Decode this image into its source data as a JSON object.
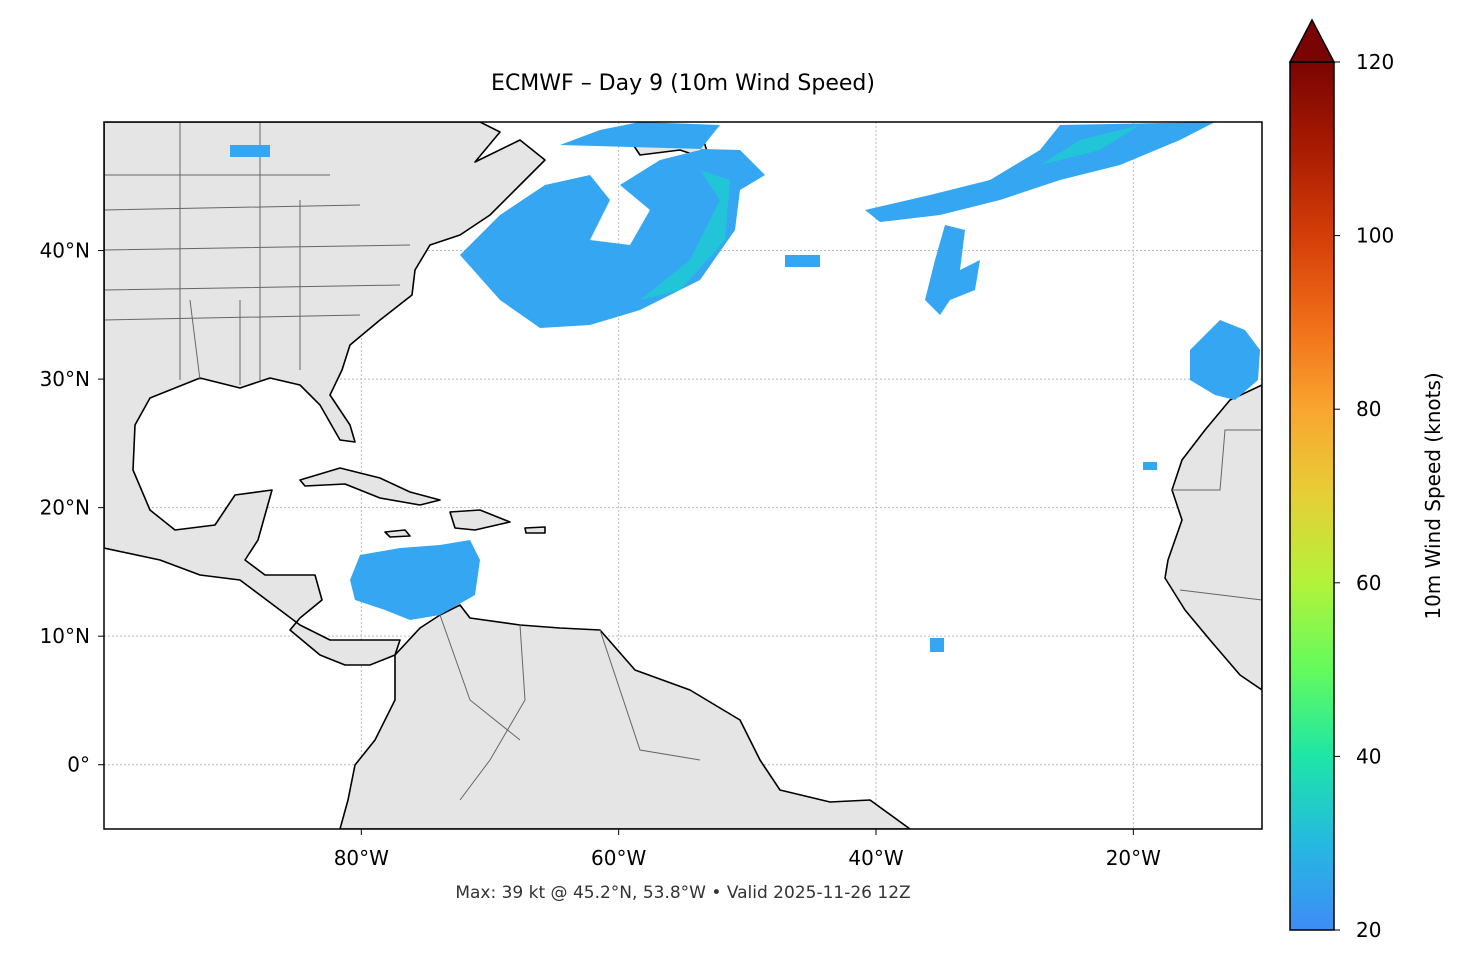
{
  "chart_data": {
    "type": "map",
    "title": "ECMWF – Day 9 (10m Wind Speed)",
    "note": "Max: 39 kt @ 45.2°N, 53.8°W • Valid 2025-11-26 12Z",
    "xlim": [
      -100,
      -10
    ],
    "ylim": [
      -5,
      50
    ],
    "xticks": [
      {
        "value": -80,
        "label": "80°W"
      },
      {
        "value": -60,
        "label": "60°W"
      },
      {
        "value": -40,
        "label": "40°W"
      },
      {
        "value": -20,
        "label": "20°W"
      }
    ],
    "yticks": [
      {
        "value": 0,
        "label": "0°"
      },
      {
        "value": 10,
        "label": "10°N"
      },
      {
        "value": 20,
        "label": "20°N"
      },
      {
        "value": 30,
        "label": "30°N"
      },
      {
        "value": 40,
        "label": "40°N"
      }
    ],
    "grid": true,
    "colorbar": {
      "label": "10m Wind Speed (knots)",
      "lim": [
        20,
        120
      ],
      "ticks": [
        20,
        40,
        60,
        80,
        100,
        120
      ]
    }
  }
}
